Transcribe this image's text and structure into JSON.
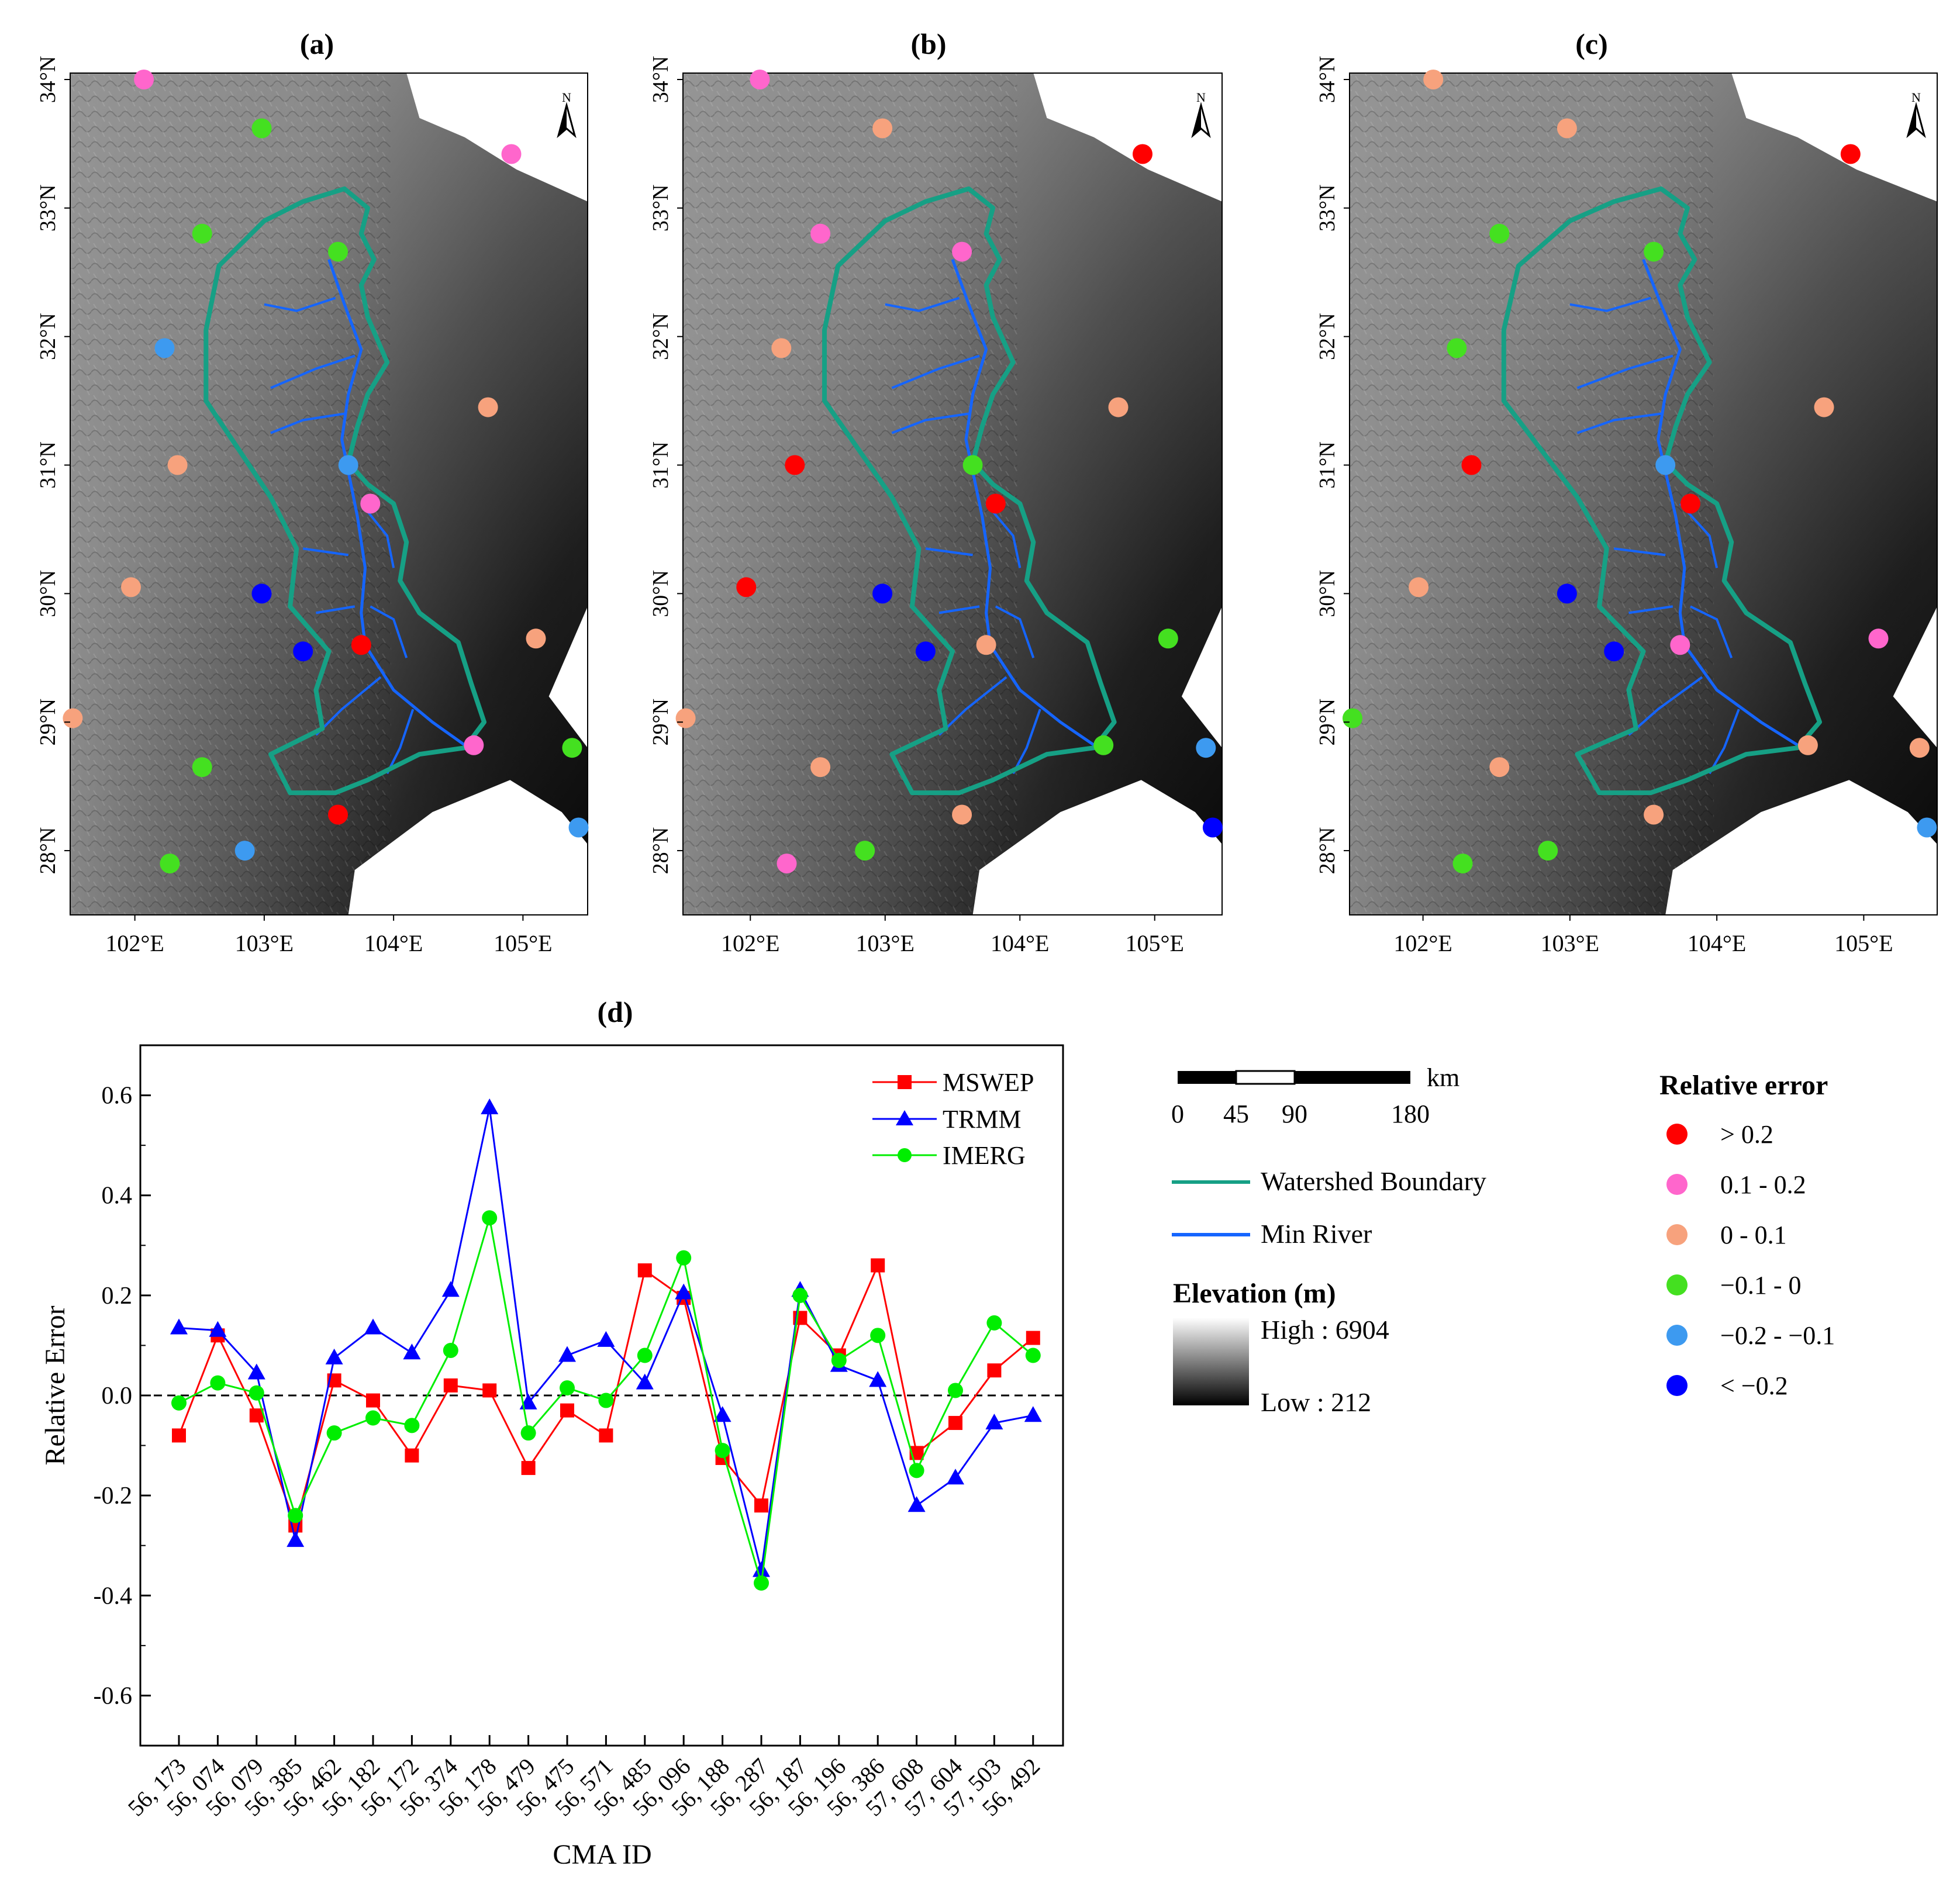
{
  "panels": [
    {
      "label": "(a)",
      "stations": [
        {
          "lon": 102.07,
          "lat": 34.0,
          "cls": "0.1 - 0.2"
        },
        {
          "lon": 102.98,
          "lat": 33.62,
          "cls": "-0.1 - 0"
        },
        {
          "lon": 104.91,
          "lat": 33.42,
          "cls": "0.1 - 0.2"
        },
        {
          "lon": 102.52,
          "lat": 32.8,
          "cls": "-0.1 - 0"
        },
        {
          "lon": 103.57,
          "lat": 32.66,
          "cls": "-0.1 - 0"
        },
        {
          "lon": 102.23,
          "lat": 31.91,
          "cls": "-0.2 - -0.1"
        },
        {
          "lon": 104.73,
          "lat": 31.45,
          "cls": "0 - 0.1"
        },
        {
          "lon": 102.33,
          "lat": 31.0,
          "cls": "0 - 0.1"
        },
        {
          "lon": 103.65,
          "lat": 31.0,
          "cls": "-0.2 - -0.1"
        },
        {
          "lon": 103.82,
          "lat": 30.7,
          "cls": "0.1 - 0.2"
        },
        {
          "lon": 101.97,
          "lat": 30.05,
          "cls": "0 - 0.1"
        },
        {
          "lon": 102.98,
          "lat": 30.0,
          "cls": "< -0.2"
        },
        {
          "lon": 105.1,
          "lat": 29.65,
          "cls": "0 - 0.1"
        },
        {
          "lon": 103.75,
          "lat": 29.6,
          "cls": "> 0.2"
        },
        {
          "lon": 103.3,
          "lat": 29.55,
          "cls": "< -0.2"
        },
        {
          "lon": 101.52,
          "lat": 29.03,
          "cls": "0 - 0.1"
        },
        {
          "lon": 104.62,
          "lat": 28.82,
          "cls": "0.1 - 0.2"
        },
        {
          "lon": 105.38,
          "lat": 28.8,
          "cls": "-0.1 - 0"
        },
        {
          "lon": 102.52,
          "lat": 28.65,
          "cls": "-0.1 - 0"
        },
        {
          "lon": 103.57,
          "lat": 28.28,
          "cls": "> 0.2"
        },
        {
          "lon": 105.43,
          "lat": 28.18,
          "cls": "-0.2 - -0.1"
        },
        {
          "lon": 102.85,
          "lat": 28.0,
          "cls": "-0.2 - -0.1"
        },
        {
          "lon": 102.27,
          "lat": 27.9,
          "cls": "-0.1 - 0"
        }
      ]
    },
    {
      "label": "(b)",
      "stations": [
        {
          "lon": 102.07,
          "lat": 34.0,
          "cls": "0.1 - 0.2"
        },
        {
          "lon": 102.98,
          "lat": 33.62,
          "cls": "0 - 0.1"
        },
        {
          "lon": 104.91,
          "lat": 33.42,
          "cls": "> 0.2"
        },
        {
          "lon": 102.52,
          "lat": 32.8,
          "cls": "0.1 - 0.2"
        },
        {
          "lon": 103.57,
          "lat": 32.66,
          "cls": "0.1 - 0.2"
        },
        {
          "lon": 102.23,
          "lat": 31.91,
          "cls": "0 - 0.1"
        },
        {
          "lon": 104.73,
          "lat": 31.45,
          "cls": "0 - 0.1"
        },
        {
          "lon": 102.33,
          "lat": 31.0,
          "cls": "> 0.2"
        },
        {
          "lon": 103.65,
          "lat": 31.0,
          "cls": "-0.1 - 0"
        },
        {
          "lon": 103.82,
          "lat": 30.7,
          "cls": "> 0.2"
        },
        {
          "lon": 101.97,
          "lat": 30.05,
          "cls": "> 0.2"
        },
        {
          "lon": 102.98,
          "lat": 30.0,
          "cls": "< -0.2"
        },
        {
          "lon": 105.1,
          "lat": 29.65,
          "cls": "-0.1 - 0"
        },
        {
          "lon": 103.75,
          "lat": 29.6,
          "cls": "0 - 0.1"
        },
        {
          "lon": 103.3,
          "lat": 29.55,
          "cls": "< -0.2"
        },
        {
          "lon": 101.52,
          "lat": 29.03,
          "cls": "0 - 0.1"
        },
        {
          "lon": 104.62,
          "lat": 28.82,
          "cls": "-0.1 - 0"
        },
        {
          "lon": 105.38,
          "lat": 28.8,
          "cls": "-0.2 - -0.1"
        },
        {
          "lon": 102.52,
          "lat": 28.65,
          "cls": "0 - 0.1"
        },
        {
          "lon": 103.57,
          "lat": 28.28,
          "cls": "0 - 0.1"
        },
        {
          "lon": 105.43,
          "lat": 28.18,
          "cls": "< -0.2"
        },
        {
          "lon": 102.85,
          "lat": 28.0,
          "cls": "-0.1 - 0"
        },
        {
          "lon": 102.27,
          "lat": 27.9,
          "cls": "0.1 - 0.2"
        }
      ]
    },
    {
      "label": "(c)",
      "stations": [
        {
          "lon": 102.07,
          "lat": 34.0,
          "cls": "0 - 0.1"
        },
        {
          "lon": 102.98,
          "lat": 33.62,
          "cls": "0 - 0.1"
        },
        {
          "lon": 104.91,
          "lat": 33.42,
          "cls": "> 0.2"
        },
        {
          "lon": 102.52,
          "lat": 32.8,
          "cls": "-0.1 - 0"
        },
        {
          "lon": 103.57,
          "lat": 32.66,
          "cls": "-0.1 - 0"
        },
        {
          "lon": 102.23,
          "lat": 31.91,
          "cls": "-0.1 - 0"
        },
        {
          "lon": 104.73,
          "lat": 31.45,
          "cls": "0 - 0.1"
        },
        {
          "lon": 102.33,
          "lat": 31.0,
          "cls": "> 0.2"
        },
        {
          "lon": 103.65,
          "lat": 31.0,
          "cls": "-0.2 - -0.1"
        },
        {
          "lon": 103.82,
          "lat": 30.7,
          "cls": "> 0.2"
        },
        {
          "lon": 101.97,
          "lat": 30.05,
          "cls": "0 - 0.1"
        },
        {
          "lon": 102.98,
          "lat": 30.0,
          "cls": "< -0.2"
        },
        {
          "lon": 105.1,
          "lat": 29.65,
          "cls": "0.1 - 0.2"
        },
        {
          "lon": 103.75,
          "lat": 29.6,
          "cls": "0.1 - 0.2"
        },
        {
          "lon": 103.3,
          "lat": 29.55,
          "cls": "< -0.2"
        },
        {
          "lon": 101.52,
          "lat": 29.03,
          "cls": "-0.1 - 0"
        },
        {
          "lon": 104.62,
          "lat": 28.82,
          "cls": "0 - 0.1"
        },
        {
          "lon": 105.38,
          "lat": 28.8,
          "cls": "0 - 0.1"
        },
        {
          "lon": 102.52,
          "lat": 28.65,
          "cls": "0 - 0.1"
        },
        {
          "lon": 103.57,
          "lat": 28.28,
          "cls": "0 - 0.1"
        },
        {
          "lon": 105.43,
          "lat": 28.18,
          "cls": "-0.2 - -0.1"
        },
        {
          "lon": 102.85,
          "lat": 28.0,
          "cls": "-0.1 - 0"
        },
        {
          "lon": 102.27,
          "lat": 27.9,
          "cls": "-0.1 - 0"
        }
      ]
    }
  ],
  "map_axes": {
    "lat_ticks": [
      "28°N",
      "29°N",
      "30°N",
      "31°N",
      "32°N",
      "33°N",
      "34°N"
    ],
    "lon_ticks": [
      "102°E",
      "103°E",
      "104°E",
      "105°E"
    ],
    "north_label": "N"
  },
  "legend": {
    "scale_bar": {
      "unit": "km",
      "labels": [
        "0",
        "45",
        "90",
        "180"
      ]
    },
    "watershed_label": "Watershed Boundary",
    "river_label": "Min River",
    "elevation_title": "Elevation (m)",
    "elevation_high": "High : 6904",
    "elevation_low": "Low : 212",
    "relative_error_title": "Relative error",
    "classes": [
      {
        "label": "> 0.2",
        "color": "#ff0000"
      },
      {
        "label": "0.1 - 0.2",
        "color": "#ff66cc"
      },
      {
        "label": "0 - 0.1",
        "color": "#f7a27d"
      },
      {
        "label": "−0.1 - 0",
        "color": "#44e020"
      },
      {
        "label": "−0.2 - −0.1",
        "color": "#3d9af0"
      },
      {
        "label": "< −0.2",
        "color": "#0000ff"
      }
    ]
  },
  "colors": {
    "watershed": "#16a085",
    "river": "#1565ff",
    "mswep": "#ff0000",
    "trmm": "#0000ff",
    "imerg": "#00ee00"
  },
  "chart_data": {
    "type": "line",
    "title": "(d)",
    "xlabel": "CMA ID",
    "ylabel": "Relative Error",
    "ylim": [
      -0.7,
      0.7
    ],
    "yticks": [
      "-0.6",
      "-0.4",
      "-0.2",
      "0.0",
      "0.2",
      "0.4",
      "0.6"
    ],
    "reference_line": 0.0,
    "categories": [
      "56, 173",
      "56, 074",
      "56, 079",
      "56, 385",
      "56, 462",
      "56, 182",
      "56, 172",
      "56, 374",
      "56, 178",
      "56, 479",
      "56, 475",
      "56, 571",
      "56, 485",
      "56, 096",
      "56, 188",
      "56, 287",
      "56, 187",
      "56, 196",
      "56, 386",
      "57, 608",
      "57, 604",
      "57, 503",
      "56, 492"
    ],
    "series": [
      {
        "name": "MSWEP",
        "marker": "square",
        "values": [
          -0.08,
          0.12,
          -0.04,
          -0.26,
          0.03,
          -0.01,
          -0.12,
          0.02,
          0.01,
          -0.145,
          -0.03,
          -0.08,
          0.25,
          0.195,
          -0.125,
          -0.22,
          0.155,
          0.08,
          0.26,
          -0.115,
          -0.055,
          0.05,
          0.115
        ]
      },
      {
        "name": "TRMM",
        "marker": "triangle",
        "values": [
          0.135,
          0.13,
          0.045,
          -0.29,
          0.075,
          0.135,
          0.085,
          0.21,
          0.575,
          -0.015,
          0.08,
          0.11,
          0.025,
          0.205,
          -0.04,
          -0.35,
          0.21,
          0.06,
          0.03,
          -0.22,
          -0.165,
          -0.055,
          -0.04
        ]
      },
      {
        "name": "IMERG",
        "marker": "circle",
        "values": [
          -0.015,
          0.025,
          0.005,
          -0.24,
          -0.075,
          -0.045,
          -0.06,
          0.09,
          0.355,
          -0.075,
          0.015,
          -0.01,
          0.08,
          0.275,
          -0.11,
          -0.375,
          0.2,
          0.07,
          0.12,
          -0.15,
          0.01,
          0.145,
          0.08
        ]
      }
    ]
  }
}
